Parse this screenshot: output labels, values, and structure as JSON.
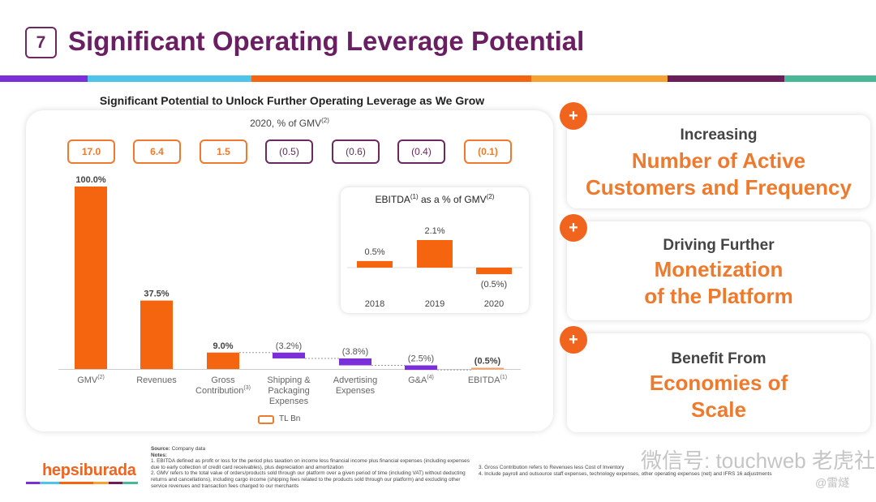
{
  "header": {
    "slide_number": "7",
    "title": "Significant Operating Leverage Potential",
    "color_bar": [
      "#7b2fd9",
      "#50c3e8",
      "#f5640f",
      "#f6a232",
      "#6b1f5a",
      "#48b897"
    ]
  },
  "left_panel": {
    "heading": "Significant Potential to Unlock Further Operating Leverage as We Grow",
    "subtitle": "2020, % of GMV",
    "subtitle_sup": "(2)",
    "tl_bn_values": [
      {
        "value": "17.0",
        "style": "orange"
      },
      {
        "value": "6.4",
        "style": "orange"
      },
      {
        "value": "1.5",
        "style": "orange"
      },
      {
        "value": "(0.5)",
        "style": "purple"
      },
      {
        "value": "(0.6)",
        "style": "purple"
      },
      {
        "value": "(0.4)",
        "style": "purple"
      },
      {
        "value": "(0.1)",
        "style": "orange"
      }
    ],
    "legend_label": "TL Bn"
  },
  "chart_data": [
    {
      "type": "bar",
      "subtype": "waterfall",
      "title": "2020, % of GMV",
      "categories": [
        "GMV",
        "Revenues",
        "Gross Contribution",
        "Shipping & Packaging Expenses",
        "Advertising Expenses",
        "G&A",
        "EBITDA"
      ],
      "category_sups": [
        "(2)",
        "",
        "(3)",
        "",
        "",
        "(4)",
        "(1)"
      ],
      "values": [
        100.0,
        37.5,
        9.0,
        -3.2,
        -3.8,
        -2.5,
        -0.5
      ],
      "data_labels": [
        "100.0%",
        "37.5%",
        "9.0%",
        "(3.2%)",
        "(3.8%)",
        "(2.5%)",
        "(0.5%)"
      ],
      "colors": [
        "#f5640f",
        "#f5640f",
        "#f5640f",
        "#7b2fd9",
        "#7b2fd9",
        "#7b2fd9",
        "#f5a060"
      ],
      "ylabel": "% of GMV",
      "ylim": [
        0,
        100
      ],
      "legend": "none"
    },
    {
      "type": "bar",
      "title": "EBITDA as a % of GMV",
      "title_sups": [
        "(1)",
        "(2)"
      ],
      "categories": [
        "2018",
        "2019",
        "2020"
      ],
      "values": [
        0.5,
        2.1,
        -0.5
      ],
      "data_labels": [
        "0.5%",
        "2.1%",
        "(0.5%)"
      ],
      "color": "#f5640f",
      "ylim": [
        -0.5,
        2.1
      ]
    }
  ],
  "side_cards": [
    {
      "sub": "Increasing",
      "main_lines": [
        "Number of Active",
        "Customers and Frequency"
      ]
    },
    {
      "sub": "Driving Further",
      "main_lines": [
        "Monetization",
        "of the Platform"
      ]
    },
    {
      "sub": "Benefit From",
      "main_lines": [
        "Economies of",
        "Scale"
      ]
    }
  ],
  "plus_icon": "+",
  "footer": {
    "logo": "hepsiburada",
    "source_label": "Source:",
    "source_value": " Company data",
    "notes_label": "Notes:",
    "notes_left": [
      "1. EBITDA defined as profit or loss for the period plus taxation on income less financial income plus financial expenses (including expenses due to early collection of credit card receivables), plus depreciation and amortization",
      "2. GMV refers to the total value of orders/products sold through our platform over a given period of time (including VAT) without deducting returns and cancellations), including cargo income (shipping fees related to the products sold through our platform) and excluding other service revenues and transaction fees charged to our merchants"
    ],
    "notes_right": [
      "3. Gross Contribution refers to Revenues less Cost of Inventory",
      "4. Include payroll and outsource staff expenses, technology expenses, other operating expenses (net) and IFRS 16 adjustments"
    ]
  },
  "watermark": {
    "text": "微信号: touchweb  老虎社区",
    "sub": "@雷燧"
  }
}
